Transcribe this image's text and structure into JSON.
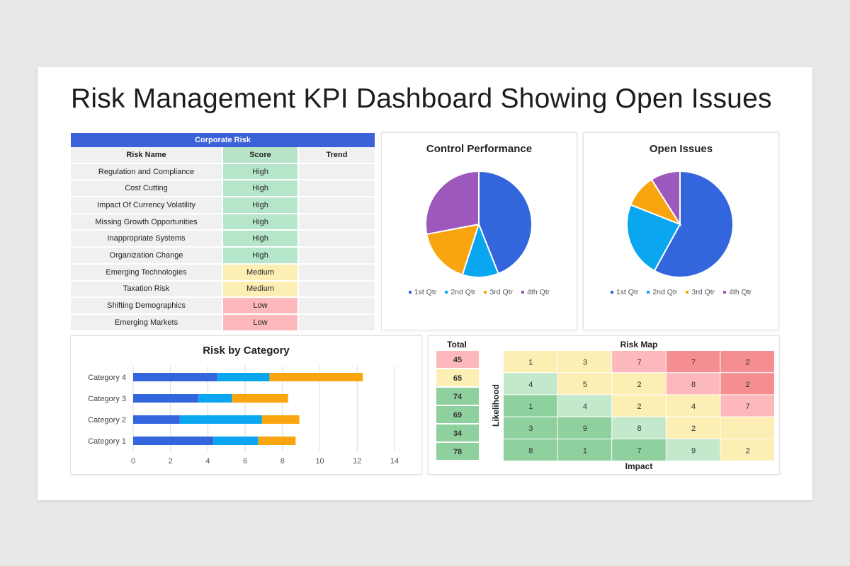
{
  "title": "Risk Management KPI Dashboard Showing Open Issues",
  "corporate_risk": {
    "header": "Corporate Risk",
    "columns": [
      "Risk Name",
      "Score",
      "Trend"
    ],
    "rows": [
      {
        "name": "Regulation and Compliance",
        "score": "High",
        "trend": ""
      },
      {
        "name": "Cost Cutting",
        "score": "High",
        "trend": ""
      },
      {
        "name": "Impact Of Currency Volatility",
        "score": "High",
        "trend": ""
      },
      {
        "name": "Missing Growth Opportunities",
        "score": "High",
        "trend": ""
      },
      {
        "name": "Inappropriate Systems",
        "score": "High",
        "trend": ""
      },
      {
        "name": "Organization Change",
        "score": "High",
        "trend": ""
      },
      {
        "name": "Emerging Technologies",
        "score": "Medium",
        "trend": ""
      },
      {
        "name": "Taxation Risk",
        "score": "Medium",
        "trend": ""
      },
      {
        "name": "Shifting Demographics",
        "score": "Low",
        "trend": ""
      },
      {
        "name": "Emerging Markets",
        "score": "Low",
        "trend": ""
      }
    ]
  },
  "colors": {
    "blue": "#3366dd",
    "light_blue": "#0aa7f0",
    "orange": "#f8a50f",
    "purple": "#9c58bc",
    "header_blue": "#3b62d8"
  },
  "chart_data": [
    {
      "type": "pie",
      "title": "Control Performance",
      "labels": [
        "1st Qtr",
        "2nd Qtr",
        "3rd Qtr",
        "4th Qtr"
      ],
      "values": [
        44,
        11,
        17,
        28
      ],
      "colors": [
        "#3366dd",
        "#0aa7f0",
        "#f8a50f",
        "#9c58bc"
      ]
    },
    {
      "type": "pie",
      "title": "Open Issues",
      "labels": [
        "1st Qtr",
        "2nd Qtr",
        "3rd Qtr",
        "4th Qtr"
      ],
      "values": [
        58,
        23,
        10,
        9
      ],
      "colors": [
        "#3366dd",
        "#0aa7f0",
        "#f8a50f",
        "#9c58bc"
      ]
    },
    {
      "type": "bar",
      "orientation": "horizontal",
      "stacked": true,
      "title": "Risk by Category",
      "categories": [
        "Category 1",
        "Category 2",
        "Category 3",
        "Category 4"
      ],
      "series": [
        {
          "values": [
            4.3,
            2.5,
            3.5,
            4.5
          ],
          "color": "#3366dd"
        },
        {
          "values": [
            2.4,
            4.4,
            1.8,
            2.8
          ],
          "color": "#0aa7f0"
        },
        {
          "values": [
            2.0,
            2.0,
            3.0,
            5.0
          ],
          "color": "#f8a50f"
        }
      ],
      "xticks": [
        0,
        2,
        4,
        6,
        8,
        10,
        12,
        14
      ],
      "xlim": [
        0,
        14
      ],
      "grid": true
    },
    {
      "type": "heatmap",
      "title": "Risk Map",
      "xlabel": "Impact",
      "ylabel": "Likelihood",
      "total_label": "Total",
      "totals": [
        45,
        65,
        74,
        69,
        34,
        78
      ],
      "cells": [
        [
          "1",
          "3",
          "7",
          "7",
          "2"
        ],
        [
          "4",
          "5",
          "2",
          "8",
          "2"
        ],
        [
          "1",
          "4",
          "2",
          "4",
          "7"
        ],
        [
          "3",
          "9",
          "8",
          "2",
          ""
        ],
        [
          "8",
          "1",
          "7",
          "9",
          "2"
        ]
      ],
      "cell_colors": [
        [
          "#fdeeb4",
          "#fdeeb4",
          "#fdb8bc",
          "#f48e91",
          "#f48e91"
        ],
        [
          "#c4e8cb",
          "#fdeeb4",
          "#fdeeb4",
          "#fdb8bc",
          "#f48e91"
        ],
        [
          "#8fd19e",
          "#c4e8cb",
          "#fdeeb4",
          "#fdeeb4",
          "#fdb8bc"
        ],
        [
          "#8fd19e",
          "#8fd19e",
          "#c4e8cb",
          "#fdeeb4",
          "#fdeeb4"
        ],
        [
          "#8fd19e",
          "#8fd19e",
          "#8fd19e",
          "#c4e8cb",
          "#fdeeb4"
        ]
      ],
      "total_colors": [
        "#fdb8bc",
        "#fdeeb4",
        "#8fd19e",
        "#8fd19e",
        "#8fd19e",
        "#8fd19e"
      ]
    }
  ]
}
